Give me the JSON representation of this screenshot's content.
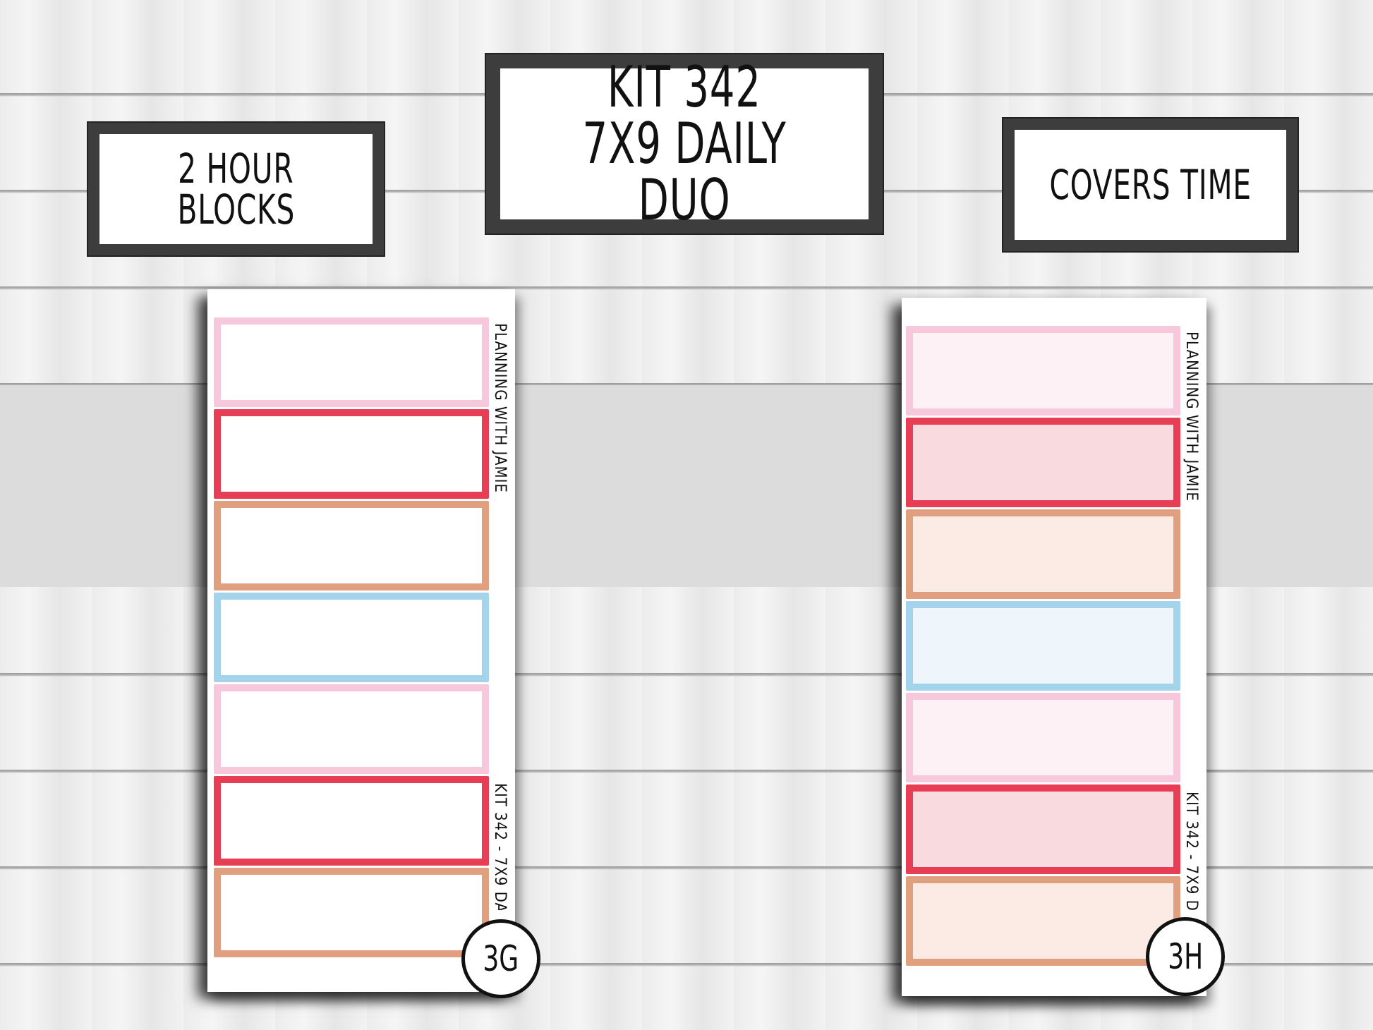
{
  "labels": {
    "left": [
      "2 HOUR",
      "BLOCKS"
    ],
    "center": [
      "KIT 342",
      "7X9 DAILY DUO"
    ],
    "right": [
      "COVERS TIME"
    ]
  },
  "sheets": [
    {
      "badge": "3G",
      "brand_text": "PLANNING WITH JAMIE",
      "kit_text": "KIT 342 - 7X9 DA",
      "fill": "white",
      "stickers": [
        {
          "border": "#f7c8dc",
          "fill": "#ffffff"
        },
        {
          "border": "#e83e55",
          "fill": "#ffffff"
        },
        {
          "border": "#e0a07f",
          "fill": "#ffffff"
        },
        {
          "border": "#a3d4ec",
          "fill": "#ffffff"
        },
        {
          "border": "#f7c8dc",
          "fill": "#ffffff"
        },
        {
          "border": "#e83e55",
          "fill": "#ffffff"
        },
        {
          "border": "#e0a07f",
          "fill": "#ffffff"
        }
      ]
    },
    {
      "badge": "3H",
      "brand_text": "PLANNING WITH JAMIE",
      "kit_text": "KIT 342 - 7X9 D",
      "fill": "tinted",
      "stickers": [
        {
          "border": "#f7c8dc",
          "fill": "#fdf1f5"
        },
        {
          "border": "#e83e55",
          "fill": "#f9dadf"
        },
        {
          "border": "#e0a07f",
          "fill": "#fbebe4"
        },
        {
          "border": "#a3d4ec",
          "fill": "#eef5fb"
        },
        {
          "border": "#f7c8dc",
          "fill": "#fdf1f5"
        },
        {
          "border": "#e83e55",
          "fill": "#f9dadf"
        },
        {
          "border": "#e0a07f",
          "fill": "#fbebe4"
        }
      ]
    }
  ]
}
